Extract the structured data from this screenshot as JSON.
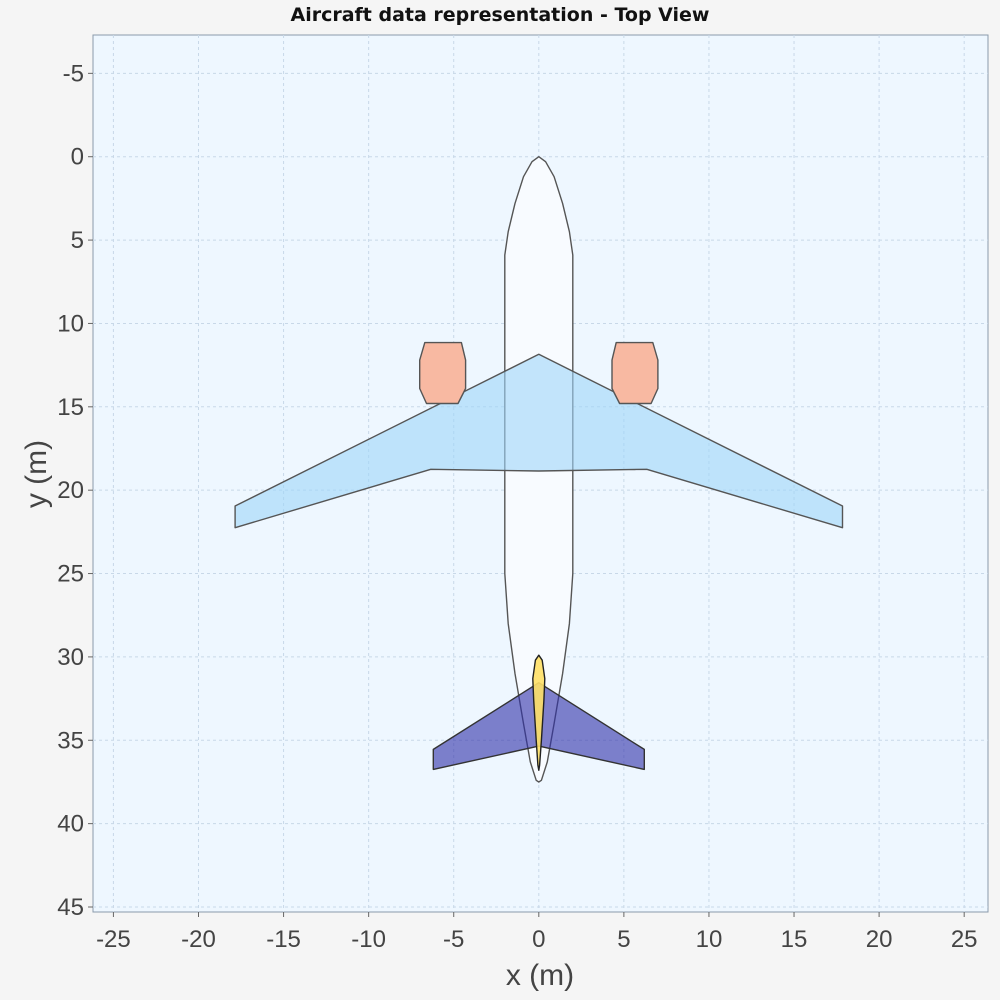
{
  "chart_data": {
    "type": "scatter",
    "title": "Aircraft data representation - Top View",
    "xlabel": "x (m)",
    "ylabel": "y (m)",
    "xlim": [
      -26.2,
      26.4
    ],
    "ylim": [
      45.3,
      -7.3
    ],
    "y_inverted": true,
    "grid": true,
    "x_ticks": [
      -25,
      -20,
      -15,
      -10,
      -5,
      0,
      5,
      10,
      15,
      20,
      25
    ],
    "y_ticks": [
      -5,
      0,
      5,
      10,
      15,
      20,
      25,
      30,
      35,
      40,
      45
    ],
    "components": [
      {
        "name": "fuselage",
        "fill": "#f8fbff",
        "stroke": "#555555",
        "points": [
          [
            0,
            0
          ],
          [
            0.4,
            0.3
          ],
          [
            0.9,
            1.2
          ],
          [
            1.4,
            2.8
          ],
          [
            1.8,
            4.5
          ],
          [
            2.0,
            5.9
          ],
          [
            2.0,
            13.5
          ],
          [
            2.0,
            20.0
          ],
          [
            2.0,
            25.0
          ],
          [
            1.8,
            28.0
          ],
          [
            1.4,
            31.0
          ],
          [
            0.9,
            34.0
          ],
          [
            0.5,
            36.3
          ],
          [
            0.15,
            37.4
          ],
          [
            0,
            37.5
          ],
          [
            -0.15,
            37.4
          ],
          [
            -0.5,
            36.3
          ],
          [
            -0.9,
            34.0
          ],
          [
            -1.4,
            31.0
          ],
          [
            -1.8,
            28.0
          ],
          [
            -2.0,
            25.0
          ],
          [
            -2.0,
            20.0
          ],
          [
            -2.0,
            13.5
          ],
          [
            -2.0,
            5.9
          ],
          [
            -1.8,
            4.5
          ],
          [
            -1.4,
            2.8
          ],
          [
            -0.9,
            1.2
          ],
          [
            -0.4,
            0.3
          ]
        ]
      },
      {
        "name": "wing",
        "fill": "#9fd6f8",
        "opacity": 0.6,
        "stroke": "#555555",
        "points": [
          [
            0,
            11.85
          ],
          [
            17.85,
            20.95
          ],
          [
            17.85,
            22.25
          ],
          [
            6.35,
            18.75
          ],
          [
            0,
            18.85
          ],
          [
            -6.35,
            18.75
          ],
          [
            -17.85,
            22.25
          ],
          [
            -17.85,
            20.95
          ]
        ]
      },
      {
        "name": "engine-left",
        "fill": "#f8b9a2",
        "stroke": "#555555",
        "points": [
          [
            -6.7,
            11.15
          ],
          [
            -4.55,
            11.15
          ],
          [
            -4.3,
            12.2
          ],
          [
            -4.3,
            13.9
          ],
          [
            -4.75,
            14.8
          ],
          [
            -6.6,
            14.8
          ],
          [
            -7.0,
            13.9
          ],
          [
            -7.0,
            12.2
          ]
        ]
      },
      {
        "name": "engine-right",
        "fill": "#f8b9a2",
        "stroke": "#555555",
        "points": [
          [
            4.55,
            11.15
          ],
          [
            6.7,
            11.15
          ],
          [
            7.0,
            12.2
          ],
          [
            7.0,
            13.9
          ],
          [
            6.6,
            14.8
          ],
          [
            4.75,
            14.8
          ],
          [
            4.3,
            13.9
          ],
          [
            4.3,
            12.2
          ]
        ]
      },
      {
        "name": "horizontal-tail",
        "fill": "#2f2fa8",
        "opacity": 0.6,
        "stroke": "#333333",
        "points": [
          [
            0,
            31.55
          ],
          [
            6.2,
            35.55
          ],
          [
            6.2,
            36.75
          ],
          [
            0,
            35.35
          ],
          [
            -6.2,
            36.75
          ],
          [
            -6.2,
            35.55
          ]
        ]
      },
      {
        "name": "vertical-tail",
        "fill": "#ffe066",
        "opacity": 0.9,
        "stroke": "#222222",
        "points": [
          [
            0,
            29.9
          ],
          [
            0.2,
            30.2
          ],
          [
            0.35,
            31.3
          ],
          [
            0.3,
            32.6
          ],
          [
            0.15,
            35.0
          ],
          [
            0.05,
            36.5
          ],
          [
            0,
            36.8
          ],
          [
            -0.05,
            36.5
          ],
          [
            -0.15,
            35.0
          ],
          [
            -0.3,
            32.6
          ],
          [
            -0.35,
            31.3
          ],
          [
            -0.2,
            30.2
          ]
        ]
      }
    ]
  }
}
